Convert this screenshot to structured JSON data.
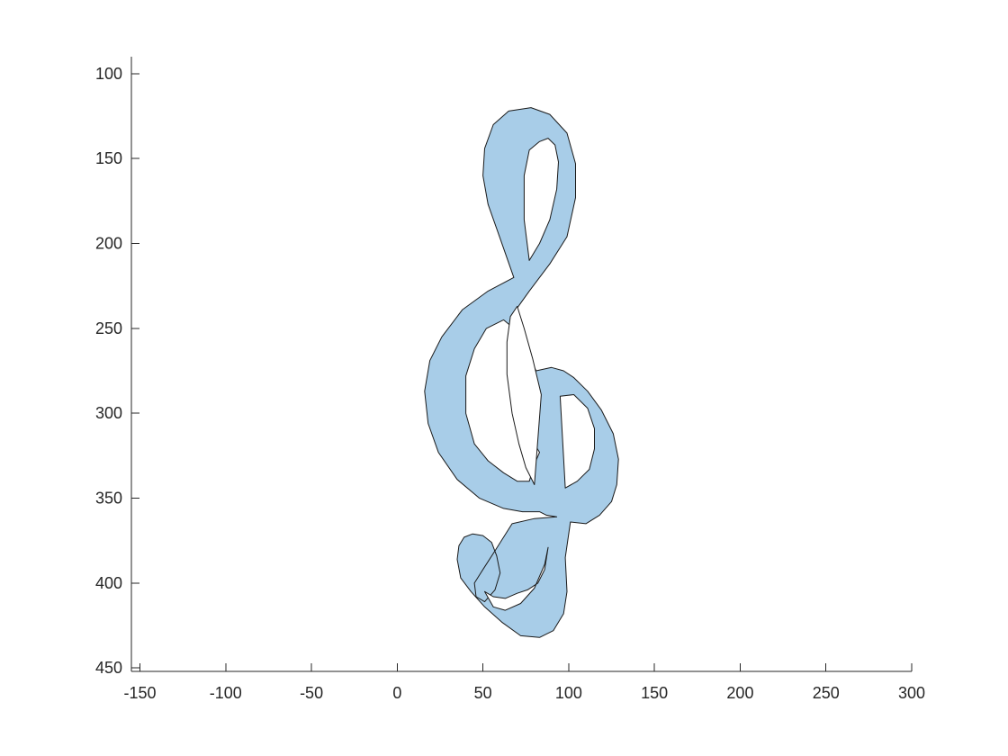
{
  "chart_data": {
    "type": "area",
    "title": "",
    "xlabel": "",
    "ylabel": "",
    "xlim": [
      -155,
      300
    ],
    "ylim": [
      90,
      452
    ],
    "y_reversed": true,
    "grid": false,
    "legend": "none",
    "x_ticks": [
      -150,
      -100,
      -50,
      0,
      50,
      100,
      150,
      200,
      250,
      300
    ],
    "y_ticks": [
      100,
      150,
      200,
      250,
      300,
      350,
      400,
      450
    ],
    "series": [
      {
        "fill_color": "#a8cde8",
        "edge_color": "#1a1a1a",
        "x": [
          68,
          60,
          53,
          50,
          51,
          56,
          65,
          78,
          89,
          99,
          104,
          104,
          99,
          89,
          77,
          70,
          74,
          81,
          90,
          97,
          103,
          111,
          119,
          126,
          129,
          128,
          125,
          118,
          110,
          101,
          98,
          99,
          97,
          91,
          83,
          72,
          61,
          51,
          43,
          37,
          35,
          36,
          39,
          44,
          50,
          55,
          58,
          60,
          57,
          51,
          46,
          45,
          50,
          57,
          67,
          80,
          93,
          87,
          83,
          79,
          73,
          62,
          48,
          35,
          24,
          18,
          16,
          19,
          26,
          38,
          53,
          68
        ],
        "y": [
          220,
          197,
          177,
          160,
          144,
          130,
          122,
          120,
          124,
          135,
          153,
          173,
          196,
          212,
          228,
          238,
          261,
          275,
          273,
          275,
          279,
          287,
          298,
          312,
          327,
          342,
          352,
          360,
          365,
          364,
          385,
          405,
          418,
          428,
          432,
          431,
          423,
          414,
          405,
          397,
          386,
          378,
          373,
          371,
          372,
          376,
          384,
          394,
          404,
          411,
          408,
          400,
          392,
          381,
          365,
          362,
          361,
          360,
          358,
          358,
          358,
          356,
          350,
          339,
          323,
          306,
          287,
          269,
          255,
          239,
          228,
          220
        ]
      },
      {
        "fill_color": "#ffffff",
        "edge_color": "#1a1a1a",
        "x": [
          83,
          88,
          92,
          94,
          93,
          89,
          83,
          77,
          74,
          74,
          77,
          83
        ],
        "y": [
          140,
          138,
          142,
          152,
          168,
          186,
          200,
          210,
          186,
          160,
          145,
          140
        ]
      },
      {
        "fill_color": "#ffffff",
        "edge_color": "#1a1a1a",
        "x": [
          77,
          70,
          62,
          53,
          45,
          40,
          40,
          45,
          52,
          62,
          68,
          72,
          70,
          67,
          68,
          73,
          80,
          83,
          80,
          77
        ],
        "y": [
          340,
          340,
          335,
          328,
          318,
          300,
          278,
          262,
          250,
          245,
          250,
          258,
          270,
          285,
          300,
          312,
          318,
          323,
          330,
          340
        ]
      },
      {
        "fill_color": "#ffffff",
        "edge_color": "#1a1a1a",
        "x": [
          84,
          79,
          74,
          70,
          66,
          64,
          64,
          67,
          71,
          75,
          80,
          84
        ],
        "y": [
          289,
          268,
          250,
          237,
          243,
          258,
          277,
          300,
          318,
          332,
          342,
          289
        ]
      },
      {
        "fill_color": "#ffffff",
        "edge_color": "#1a1a1a",
        "x": [
          95,
          103,
          111,
          115,
          115,
          112,
          105,
          98,
          95
        ],
        "y": [
          290,
          289,
          297,
          309,
          321,
          333,
          340,
          344,
          290
        ]
      },
      {
        "fill_color": "#ffffff",
        "edge_color": "#1a1a1a",
        "x": [
          51,
          56,
          63,
          70,
          76,
          82,
          86,
          88,
          86,
          80,
          72,
          63,
          56,
          51
        ],
        "y": [
          405,
          408,
          409,
          406,
          404,
          400,
          392,
          379,
          389,
          403,
          412,
          416,
          414,
          405
        ]
      }
    ]
  }
}
